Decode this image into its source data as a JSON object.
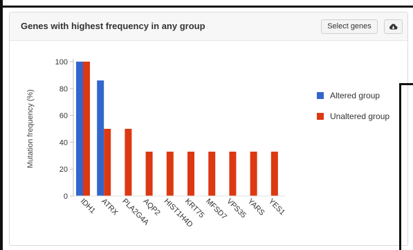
{
  "header": {
    "title": "Genes with highest frequency in any group",
    "select_genes_label": "Select genes",
    "download_icon": "cloud-download-icon"
  },
  "chart_data": {
    "type": "bar",
    "title": "Genes with highest frequency in any group",
    "xlabel": "",
    "ylabel": "Mutation frequency (%)",
    "ylim": [
      0,
      100
    ],
    "yticks": [
      0,
      20,
      40,
      60,
      80,
      100
    ],
    "categories": [
      "IDH1",
      "ATRX",
      "PLA2G4A",
      "AQP2",
      "HIST1H4D",
      "KRT75",
      "MFSD7",
      "VPS35",
      "YARS",
      "YES1"
    ],
    "series": [
      {
        "name": "Altered group",
        "color": "#3366cc",
        "values": [
          100,
          86,
          0,
          0,
          0,
          0,
          0,
          0,
          0,
          0
        ]
      },
      {
        "name": "Unaltered group",
        "color": "#dc3912",
        "values": [
          100,
          50,
          50,
          33,
          33,
          33,
          33,
          33,
          33,
          33
        ]
      }
    ],
    "legend_position": "right",
    "grid": false
  }
}
